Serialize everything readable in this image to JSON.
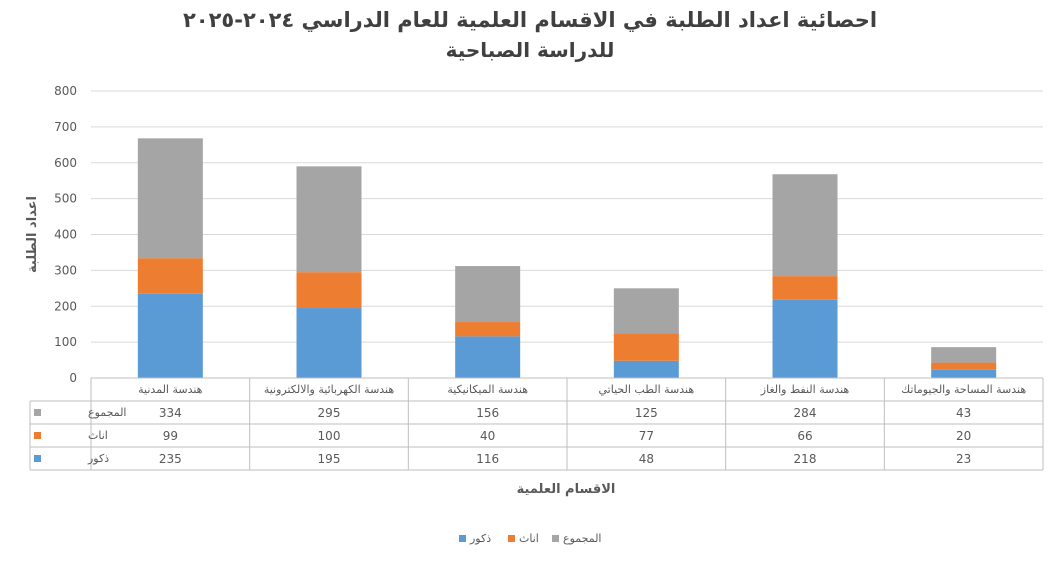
{
  "chart_data": {
    "type": "bar",
    "stacked": true,
    "title": "احصائية اعداد الطلبة في الاقسام العلمية للعام الدراسي ٢٠٢٤-٢٠٢٥",
    "subtitle": "للدراسة الصباحية",
    "xlabel": "الاقسام العلمية",
    "ylabel": "اعداد الطلبة",
    "ylim": [
      0,
      800
    ],
    "yticks": [
      0,
      100,
      200,
      300,
      400,
      500,
      600,
      700,
      800
    ],
    "grid": true,
    "legend_position": "bottom",
    "data_table": true,
    "categories": [
      "هندسة المدنية",
      "هندسة الكهربائية والالكترونية",
      "هندسة الميكانيكية",
      "هندسة الطب الحياتي",
      "هندسة النفط والغاز",
      "هندسة المساحة والجيوماتك"
    ],
    "series": [
      {
        "name": "ذكور",
        "color": "#5b9bd5",
        "values": [
          235,
          195,
          116,
          48,
          218,
          23
        ]
      },
      {
        "name": "اناث",
        "color": "#ed7d31",
        "values": [
          99,
          100,
          40,
          77,
          66,
          20
        ]
      },
      {
        "name": "المجموع",
        "color": "#a5a5a5",
        "values": [
          334,
          295,
          156,
          125,
          284,
          43
        ]
      }
    ]
  }
}
